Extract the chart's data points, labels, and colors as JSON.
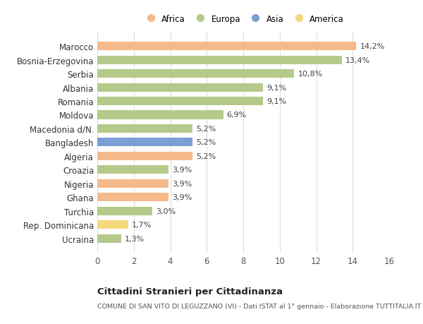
{
  "categories": [
    "Marocco",
    "Bosnia-Erzegovina",
    "Serbia",
    "Albania",
    "Romania",
    "Moldova",
    "Macedonia d/N.",
    "Bangladesh",
    "Algeria",
    "Croazia",
    "Nigeria",
    "Ghana",
    "Turchia",
    "Rep. Dominicana",
    "Ucraina"
  ],
  "values": [
    14.2,
    13.4,
    10.8,
    9.1,
    9.1,
    6.9,
    5.2,
    5.2,
    5.2,
    3.9,
    3.9,
    3.9,
    3.0,
    1.7,
    1.3
  ],
  "labels": [
    "14,2%",
    "13,4%",
    "10,8%",
    "9,1%",
    "9,1%",
    "6,9%",
    "5,2%",
    "5,2%",
    "5,2%",
    "3,9%",
    "3,9%",
    "3,9%",
    "3,0%",
    "1,7%",
    "1,3%"
  ],
  "colors": [
    "#f5b98a",
    "#b5c98a",
    "#b5c98a",
    "#b5c98a",
    "#b5c98a",
    "#b5c98a",
    "#b5c98a",
    "#7b9fd4",
    "#f5b98a",
    "#b5c98a",
    "#f5b98a",
    "#f5b98a",
    "#b5c98a",
    "#f5d87a",
    "#b5c98a"
  ],
  "legend_labels": [
    "Africa",
    "Europa",
    "Asia",
    "America"
  ],
  "legend_colors": [
    "#f5b98a",
    "#b5c98a",
    "#7b9fd4",
    "#f5d87a"
  ],
  "title": "Cittadini Stranieri per Cittadinanza",
  "subtitle": "COMUNE DI SAN VITO DI LEGUZZANO (VI) - Dati ISTAT al 1° gennaio - Elaborazione TUTTITALIA.IT",
  "xlim": [
    0,
    16
  ],
  "xticks": [
    0,
    2,
    4,
    6,
    8,
    10,
    12,
    14,
    16
  ],
  "bg_color": "#ffffff",
  "grid_color": "#dddddd"
}
